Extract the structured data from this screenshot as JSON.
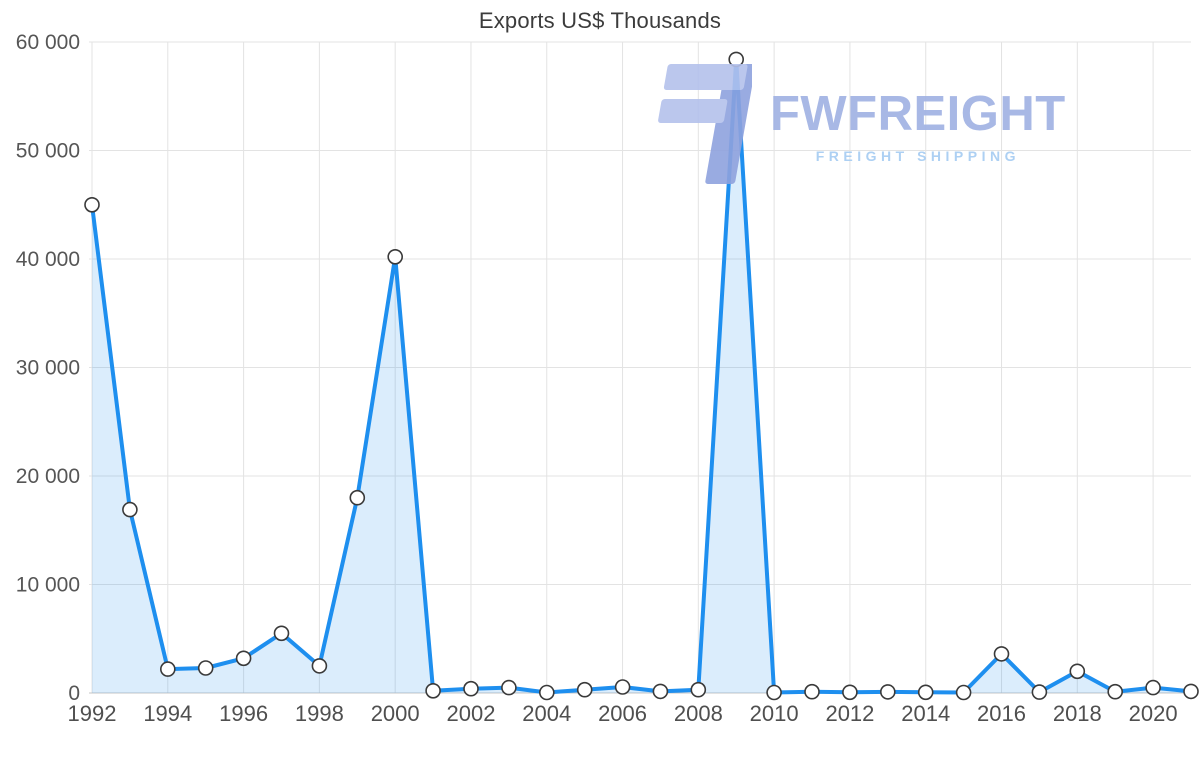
{
  "chart_data": {
    "type": "area",
    "title": "Exports US$ Thousands",
    "xlabel": "",
    "ylabel": "",
    "x": [
      1992,
      1993,
      1994,
      1995,
      1996,
      1997,
      1998,
      1999,
      2000,
      2001,
      2002,
      2003,
      2004,
      2005,
      2006,
      2007,
      2008,
      2009,
      2010,
      2011,
      2012,
      2013,
      2014,
      2015,
      2016,
      2017,
      2018,
      2019,
      2020,
      2021
    ],
    "values": [
      45000,
      16900,
      2200,
      2300,
      3200,
      5500,
      2500,
      18000,
      40200,
      200,
      400,
      500,
      50,
      300,
      550,
      150,
      300,
      58400,
      50,
      120,
      60,
      100,
      60,
      50,
      3600,
      80,
      2000,
      120,
      500,
      150
    ],
    "x_ticks": [
      1992,
      1994,
      1996,
      1998,
      2000,
      2002,
      2004,
      2006,
      2008,
      2010,
      2012,
      2014,
      2016,
      2018,
      2020
    ],
    "y_ticks": [
      0,
      10000,
      20000,
      30000,
      40000,
      50000,
      60000
    ],
    "y_tick_labels": [
      "0",
      "10 000",
      "20 000",
      "30 000",
      "40 000",
      "50 000",
      "60 000"
    ],
    "ylim": [
      0,
      60000
    ],
    "grid": true,
    "legend": "none",
    "line_color": "#1E8FEF",
    "area_opacity": 0.16,
    "grid_color": "#e3e3e3",
    "axis_color": "#c6c6c6",
    "marker": {
      "fill": "#ffffff",
      "stroke": "#3a3a3a",
      "radius": 7
    }
  },
  "watermark": {
    "brand": "FWFREIGHT",
    "tagline": "FREIGHT SHIPPING",
    "logo_icon": "stylized-f-bars-icon",
    "brand_color": "#9fb1e3",
    "tagline_color": "#a5ccf2"
  }
}
